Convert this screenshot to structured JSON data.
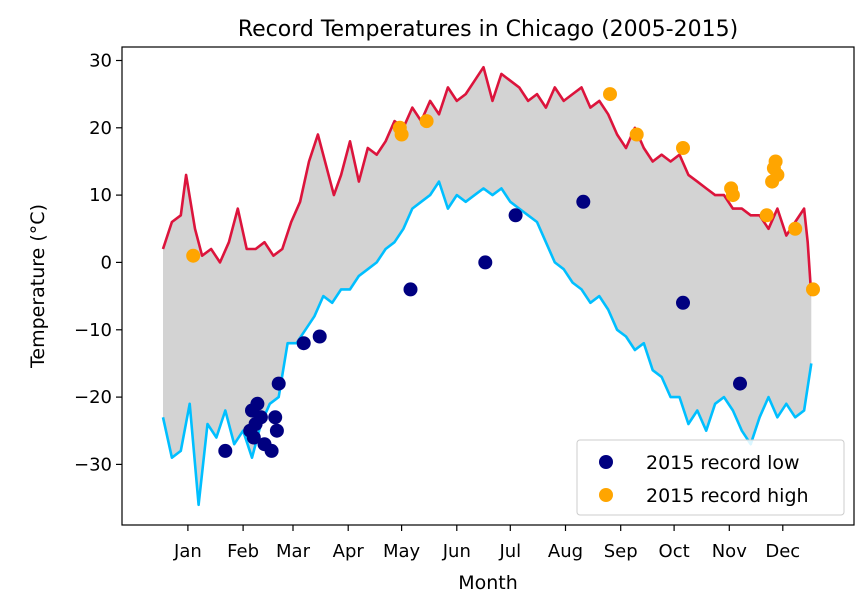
{
  "chart_data": {
    "type": "line",
    "title": "Record Temperatures in Chicago (2005-2015)",
    "xlabel": "Month",
    "ylabel": "Temperature (°C)",
    "x_ticks": [
      "Jan",
      "Feb",
      "Mar",
      "Apr",
      "May",
      "Jun",
      "Jul",
      "Aug",
      "Sep",
      "Oct",
      "Nov",
      "Dec"
    ],
    "y_ticks": [
      "30",
      "20",
      "10",
      "0",
      "−10",
      "−20",
      "−30"
    ],
    "ylim": [
      -39,
      32
    ],
    "xlim": [
      -23,
      388
    ],
    "grid": false,
    "legend_position": "lower-right",
    "colors": {
      "record_high_line": "#dc143c",
      "record_low_line": "#00bfff",
      "fill": "#d3d3d3",
      "scatter_low": "#000080",
      "scatter_high": "#ffa500"
    },
    "series": [
      {
        "role": "record_high_line",
        "x": [
          0,
          5,
          10,
          13,
          18,
          22,
          27,
          32,
          37,
          42,
          47,
          52,
          57,
          62,
          67,
          72,
          77,
          82,
          87,
          92,
          96,
          100,
          105,
          110,
          115,
          120,
          125,
          130,
          135,
          140,
          145,
          150,
          155,
          160,
          165,
          170,
          175,
          180,
          185,
          190,
          195,
          200,
          205,
          210,
          215,
          220,
          225,
          230,
          235,
          240,
          245,
          250,
          255,
          260,
          265,
          270,
          275,
          280,
          285,
          290,
          295,
          300,
          305,
          310,
          315,
          320,
          325,
          330,
          335,
          340,
          345,
          350,
          355,
          360,
          362,
          364
        ],
        "y": [
          2,
          6,
          7,
          13,
          5,
          1,
          2,
          0,
          3,
          8,
          2,
          2,
          3,
          1,
          2,
          6,
          9,
          15,
          19,
          14,
          10,
          13,
          18,
          12,
          17,
          16,
          18,
          21,
          20,
          23,
          21,
          24,
          22,
          26,
          24,
          25,
          27,
          29,
          24,
          28,
          27,
          26,
          24,
          25,
          23,
          26,
          24,
          25,
          26,
          23,
          24,
          22,
          19,
          17,
          20,
          17,
          15,
          16,
          15,
          16,
          13,
          12,
          11,
          10,
          10,
          8,
          8,
          7,
          7,
          5,
          8,
          4,
          6,
          8,
          3,
          -5
        ]
      },
      {
        "role": "record_low_line",
        "x": [
          0,
          5,
          10,
          15,
          20,
          25,
          30,
          35,
          40,
          45,
          50,
          55,
          60,
          65,
          70,
          75,
          80,
          85,
          90,
          95,
          100,
          105,
          110,
          115,
          120,
          125,
          130,
          135,
          140,
          145,
          150,
          155,
          160,
          165,
          170,
          175,
          180,
          185,
          190,
          195,
          200,
          205,
          210,
          215,
          220,
          225,
          230,
          235,
          240,
          245,
          250,
          255,
          260,
          265,
          270,
          275,
          280,
          285,
          290,
          295,
          300,
          305,
          310,
          315,
          320,
          325,
          330,
          335,
          340,
          345,
          350,
          355,
          360,
          364
        ],
        "y": [
          -23,
          -29,
          -28,
          -21,
          -36,
          -24,
          -26,
          -22,
          -27,
          -25,
          -29,
          -24,
          -21,
          -20,
          -12,
          -12,
          -10,
          -8,
          -5,
          -6,
          -4,
          -4,
          -2,
          -1,
          0,
          2,
          3,
          5,
          8,
          9,
          10,
          12,
          8,
          10,
          9,
          10,
          11,
          10,
          11,
          9,
          8,
          7,
          6,
          3,
          0,
          -1,
          -3,
          -4,
          -6,
          -5,
          -7,
          -10,
          -11,
          -13,
          -12,
          -16,
          -17,
          -20,
          -20,
          -24,
          -22,
          -25,
          -21,
          -20,
          -22,
          -25,
          -27,
          -23,
          -20,
          -23,
          -21,
          -23,
          -22,
          -15
        ]
      }
    ],
    "scatter": [
      {
        "name": "2015 record low",
        "x": [
          35,
          49,
          50,
          51,
          52,
          53,
          55,
          57,
          61,
          63,
          64,
          65,
          79,
          88,
          139,
          181,
          198,
          236,
          292,
          324
        ],
        "y": [
          -28,
          -25,
          -22,
          -26,
          -24,
          -21,
          -23,
          -27,
          -28,
          -23,
          -25,
          -18,
          -12,
          -11,
          -4,
          0,
          7,
          9,
          -6,
          -18
        ]
      },
      {
        "name": "2015 record high",
        "x": [
          17,
          133,
          134,
          148,
          251,
          266,
          292,
          319,
          320,
          339,
          342,
          343,
          344,
          345,
          355,
          365
        ],
        "y": [
          1,
          20,
          19,
          21,
          25,
          19,
          17,
          11,
          10,
          7,
          12,
          14,
          15,
          13,
          5,
          -4
        ]
      }
    ]
  }
}
